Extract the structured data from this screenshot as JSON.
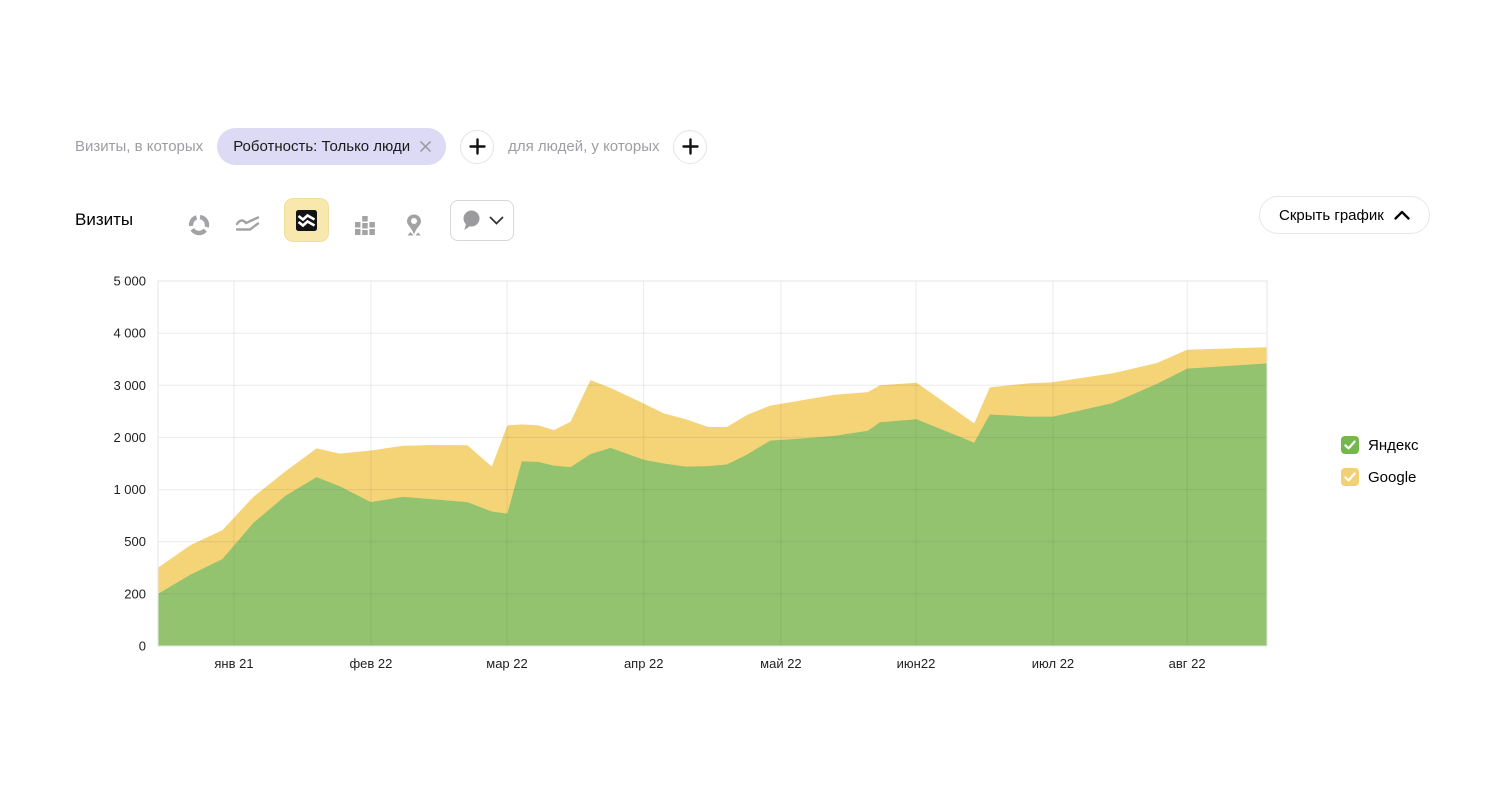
{
  "filter_bar": {
    "prefix_label": "Визиты, в которых",
    "chip_label": "Роботность: Только люди",
    "suffix_label": "для людей, у которых"
  },
  "toolbar": {
    "metric_label": "Визиты",
    "chart_types": [
      "donut",
      "line",
      "stacked-area",
      "columns",
      "map"
    ],
    "selected_chart_type": "stacked-area",
    "hide_chart_label": "Скрыть график"
  },
  "chart_data": {
    "type": "area",
    "stacked": true,
    "metric": "Визиты",
    "grid": true,
    "legend_position": "right",
    "y_axis": {
      "scale": "non-linear-equal-steps",
      "ticks": [
        {
          "v": 0,
          "label": "0"
        },
        {
          "v": 200,
          "label": "200"
        },
        {
          "v": 500,
          "label": "500"
        },
        {
          "v": 1000,
          "label": "1 000"
        },
        {
          "v": 2000,
          "label": "2 000"
        },
        {
          "v": 3000,
          "label": "3 000"
        },
        {
          "v": 4000,
          "label": "4 000"
        },
        {
          "v": 5000,
          "label": "5 000"
        }
      ]
    },
    "x_axis": {
      "ticks": [
        {
          "f": 0.0685,
          "label": "янв 21"
        },
        {
          "f": 0.192,
          "label": "фев 22"
        },
        {
          "f": 0.3147,
          "label": "мар 22"
        },
        {
          "f": 0.438,
          "label": "апр 22"
        },
        {
          "f": 0.5617,
          "label": "май 22"
        },
        {
          "f": 0.6835,
          "label": "июн22"
        },
        {
          "f": 0.807,
          "label": "июл 22"
        },
        {
          "f": 0.928,
          "label": "авг 22"
        }
      ]
    },
    "x": [
      0,
      0.029,
      0.058,
      0.086,
      0.115,
      0.143,
      0.164,
      0.192,
      0.221,
      0.25,
      0.279,
      0.301,
      0.315,
      0.328,
      0.343,
      0.357,
      0.372,
      0.39,
      0.408,
      0.438,
      0.456,
      0.476,
      0.496,
      0.513,
      0.531,
      0.552,
      0.58,
      0.61,
      0.64,
      0.651,
      0.684,
      0.736,
      0.75,
      0.786,
      0.807,
      0.861,
      0.901,
      0.928,
      1
    ],
    "series": [
      {
        "name": "Яндекс",
        "color": "#94c370",
        "legend_color": "#74b74e",
        "values": [
          200,
          310,
          400,
          680,
          940,
          1240,
          1060,
          880,
          930,
          905,
          880,
          790,
          770,
          1540,
          1530,
          1460,
          1430,
          1680,
          1800,
          1570,
          1500,
          1440,
          1450,
          1480,
          1670,
          1940,
          1980,
          2030,
          2130,
          2290,
          2350,
          1900,
          2440,
          2400,
          2400,
          2660,
          3030,
          3320,
          3420
        ]
      },
      {
        "name": "Google",
        "color": "#f5d478",
        "legend_color": "#f2d078",
        "values": [
          150,
          170,
          210,
          250,
          410,
          550,
          630,
          870,
          910,
          950,
          970,
          650,
          1460,
          710,
          700,
          680,
          870,
          1420,
          1150,
          1080,
          960,
          910,
          750,
          720,
          760,
          670,
          730,
          790,
          740,
          710,
          700,
          370,
          520,
          640,
          660,
          570,
          400,
          360,
          310
        ]
      }
    ],
    "grid_color": "rgba(60,60,60,0.10)",
    "border_color": "#e4e4e4",
    "axis_text_color": "#1f1f1f"
  },
  "legend": {
    "items": [
      {
        "label": "Яндекс",
        "checked": true
      },
      {
        "label": "Google",
        "checked": true
      }
    ]
  }
}
